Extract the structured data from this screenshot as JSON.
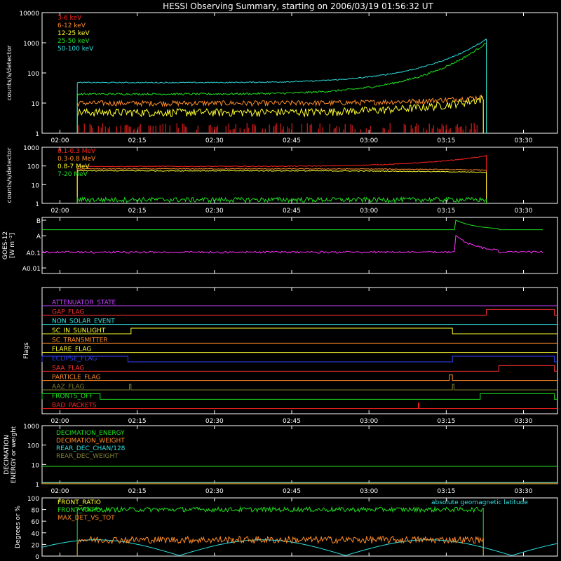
{
  "title": "HESSI Observing Summary, starting on 2006/03/19 01:56:32 UT",
  "time_ticks": [
    {
      "t": 2.0,
      "label": "02:00"
    },
    {
      "t": 2.25,
      "label": "02:15"
    },
    {
      "t": 2.5,
      "label": "02:30"
    },
    {
      "t": 2.75,
      "label": "02:45"
    },
    {
      "t": 3.0,
      "label": "03:00"
    },
    {
      "t": 3.25,
      "label": "03:15"
    },
    {
      "t": 3.5,
      "label": "03:30"
    }
  ],
  "chart_data": [
    {
      "type": "line",
      "panel": "low_energy_rates",
      "ylabel": "counts/s/detector",
      "yscale": "log",
      "ylim": [
        1,
        10000
      ],
      "yticks": [
        {
          "v": 1,
          "label": "1"
        },
        {
          "v": 10,
          "label": "10"
        },
        {
          "v": 100,
          "label": "100"
        },
        {
          "v": 1000,
          "label": "1000"
        },
        {
          "v": 10000,
          "label": "10000"
        }
      ],
      "series": [
        {
          "name": "3-6 keV",
          "color": "#ff2020",
          "values_desc": "",
          "start": 2.056,
          "end": 3.37,
          "level": 1.6,
          "end_level": 1.5
        },
        {
          "name": "6-12 keV",
          "color": "#ff8c28",
          "start": 2.056,
          "end": 3.37,
          "level": 10,
          "end_level": 16
        },
        {
          "name": "12-25 keV",
          "color": "#ffff30",
          "start": 2.056,
          "end": 3.37,
          "level": 5,
          "end_level": 14
        },
        {
          "name": "25-50 keV",
          "color": "#20e020",
          "start": 2.056,
          "end": 3.38,
          "level": 20,
          "end_level": 1000
        },
        {
          "name": "50-100 keV",
          "color": "#30e0e0",
          "start": 2.056,
          "end": 3.38,
          "level": 48,
          "end_level": 1300
        }
      ]
    },
    {
      "type": "line",
      "panel": "high_energy_rates",
      "ylabel": "counts/s/detector",
      "yscale": "log",
      "ylim": [
        1,
        1000
      ],
      "yticks": [
        {
          "v": 1,
          "label": "1"
        },
        {
          "v": 10,
          "label": "10"
        },
        {
          "v": 100,
          "label": "100"
        },
        {
          "v": 1000,
          "label": "1000"
        }
      ],
      "series": [
        {
          "name": "0.1-0.3 MeV",
          "color": "#ff2020",
          "start": 2.056,
          "end": 3.38,
          "level": 95,
          "end_level": 350
        },
        {
          "name": "0.3-0.8 MeV",
          "color": "#ff8c28",
          "start": 2.056,
          "end": 3.38,
          "level": 70,
          "end_level": 60
        },
        {
          "name": "0.8-7 MeV",
          "color": "#ffff30",
          "start": 2.056,
          "end": 3.38,
          "level": 55,
          "end_level": 45
        },
        {
          "name": "7-20 MeV",
          "color": "#20e020",
          "start": 2.056,
          "end": 3.38,
          "level": 1.6,
          "end_level": 1.6
        }
      ]
    },
    {
      "type": "line",
      "panel": "goes",
      "ylabel_lines": [
        "GOES-12",
        "[W m⁻²]"
      ],
      "yticks": [
        {
          "label": "B",
          "frac": 0.0
        },
        {
          "label": "A",
          "frac": 0.3
        },
        {
          "label": "A0.1",
          "frac": 0.62
        },
        {
          "label": "A0.01",
          "frac": 0.92
        }
      ],
      "series": [
        {
          "name": "long",
          "color": "#20e020",
          "level_frac": 0.22
        },
        {
          "name": "short",
          "color": "#ff30ff",
          "level_frac": 0.62
        }
      ]
    },
    {
      "type": "line",
      "panel": "flags",
      "ylabel": "Flags",
      "series": [
        {
          "name": "ATTENUATOR_STATE",
          "color": "#c040ff",
          "high": []
        },
        {
          "name": "GAP_FLAG",
          "color": "#ff3030",
          "high": [
            [
              3.38,
              3.6
            ]
          ]
        },
        {
          "name": "NON_SOLAR_EVENT",
          "color": "#30e0e0",
          "high": []
        },
        {
          "name": "SC_IN_SUNLIGHT",
          "color": "#ffff30",
          "high": [
            [
              2.23,
              3.27
            ]
          ]
        },
        {
          "name": "SC_TRANSMITTER",
          "color": "#ff8c28",
          "high": []
        },
        {
          "name": "FLARE_FLAG",
          "color": "#ffff30",
          "high": []
        },
        {
          "name": "ECLIPSE_FLAG",
          "color": "#3040ff",
          "high": [
            [
              1.94,
              2.22
            ],
            [
              3.27,
              3.6
            ]
          ]
        },
        {
          "name": "SAA_FLAG",
          "color": "#ff3030",
          "high": [
            [
              3.42,
              3.6
            ]
          ]
        },
        {
          "name": "PARTICLE_FLAG",
          "color": "#ff8c28",
          "high": [
            [
              3.26,
              3.27
            ]
          ]
        },
        {
          "name": "AAZ_FLAG",
          "color": "#808030",
          "high": [
            [
              2.225,
              2.23
            ],
            [
              3.27,
              3.275
            ]
          ]
        },
        {
          "name": "FRONTS_OFF",
          "color": "#20e020",
          "high": [
            [
              1.94,
              2.13
            ],
            [
              3.36,
              3.6
            ]
          ]
        },
        {
          "name": "BAD_PACKETS",
          "color": "#ff2020",
          "high": [
            [
              3.16,
              3.162
            ]
          ]
        }
      ]
    },
    {
      "type": "line",
      "panel": "decimation",
      "ylabel_lines": [
        "DECIMATION",
        "ENERGY or weight"
      ],
      "yscale": "log",
      "ylim": [
        1,
        1000
      ],
      "yticks": [
        {
          "v": 1,
          "label": "1"
        },
        {
          "v": 10,
          "label": "10"
        },
        {
          "v": 100,
          "label": "100"
        },
        {
          "v": 1000,
          "label": "1000"
        }
      ],
      "series": [
        {
          "name": "DECIMATION_ENERGY",
          "color": "#20e020",
          "level": 8
        },
        {
          "name": "DECIMATION_WEIGHT",
          "color": "#ff8c28",
          "level": 1.1
        },
        {
          "name": "REAR_DEC_CHAN/128",
          "color": "#30e0e0",
          "level": 1.0
        },
        {
          "name": "REAR_DEC_WEIGHT",
          "color": "#808030",
          "level": 1.0
        }
      ]
    },
    {
      "type": "line",
      "panel": "ratios",
      "ylabel": "Degrees or %",
      "ylim": [
        0,
        100
      ],
      "yticks": [
        {
          "v": 0,
          "label": "0"
        },
        {
          "v": 20,
          "label": "20"
        },
        {
          "v": 40,
          "label": "40"
        },
        {
          "v": 60,
          "label": "60"
        },
        {
          "v": 80,
          "label": "80"
        },
        {
          "v": 100,
          "label": "100"
        }
      ],
      "annotation": "absolute geomagnetic latitude",
      "series": [
        {
          "name": "FRONT_RATIO",
          "color": "#ffff30",
          "level": 0
        },
        {
          "name": "FRONT_RATIO",
          "color": "#20e020",
          "level": 80
        },
        {
          "name": "MAX_DET_VS_TOT",
          "color": "#ff8c28",
          "level": 28
        }
      ]
    }
  ]
}
